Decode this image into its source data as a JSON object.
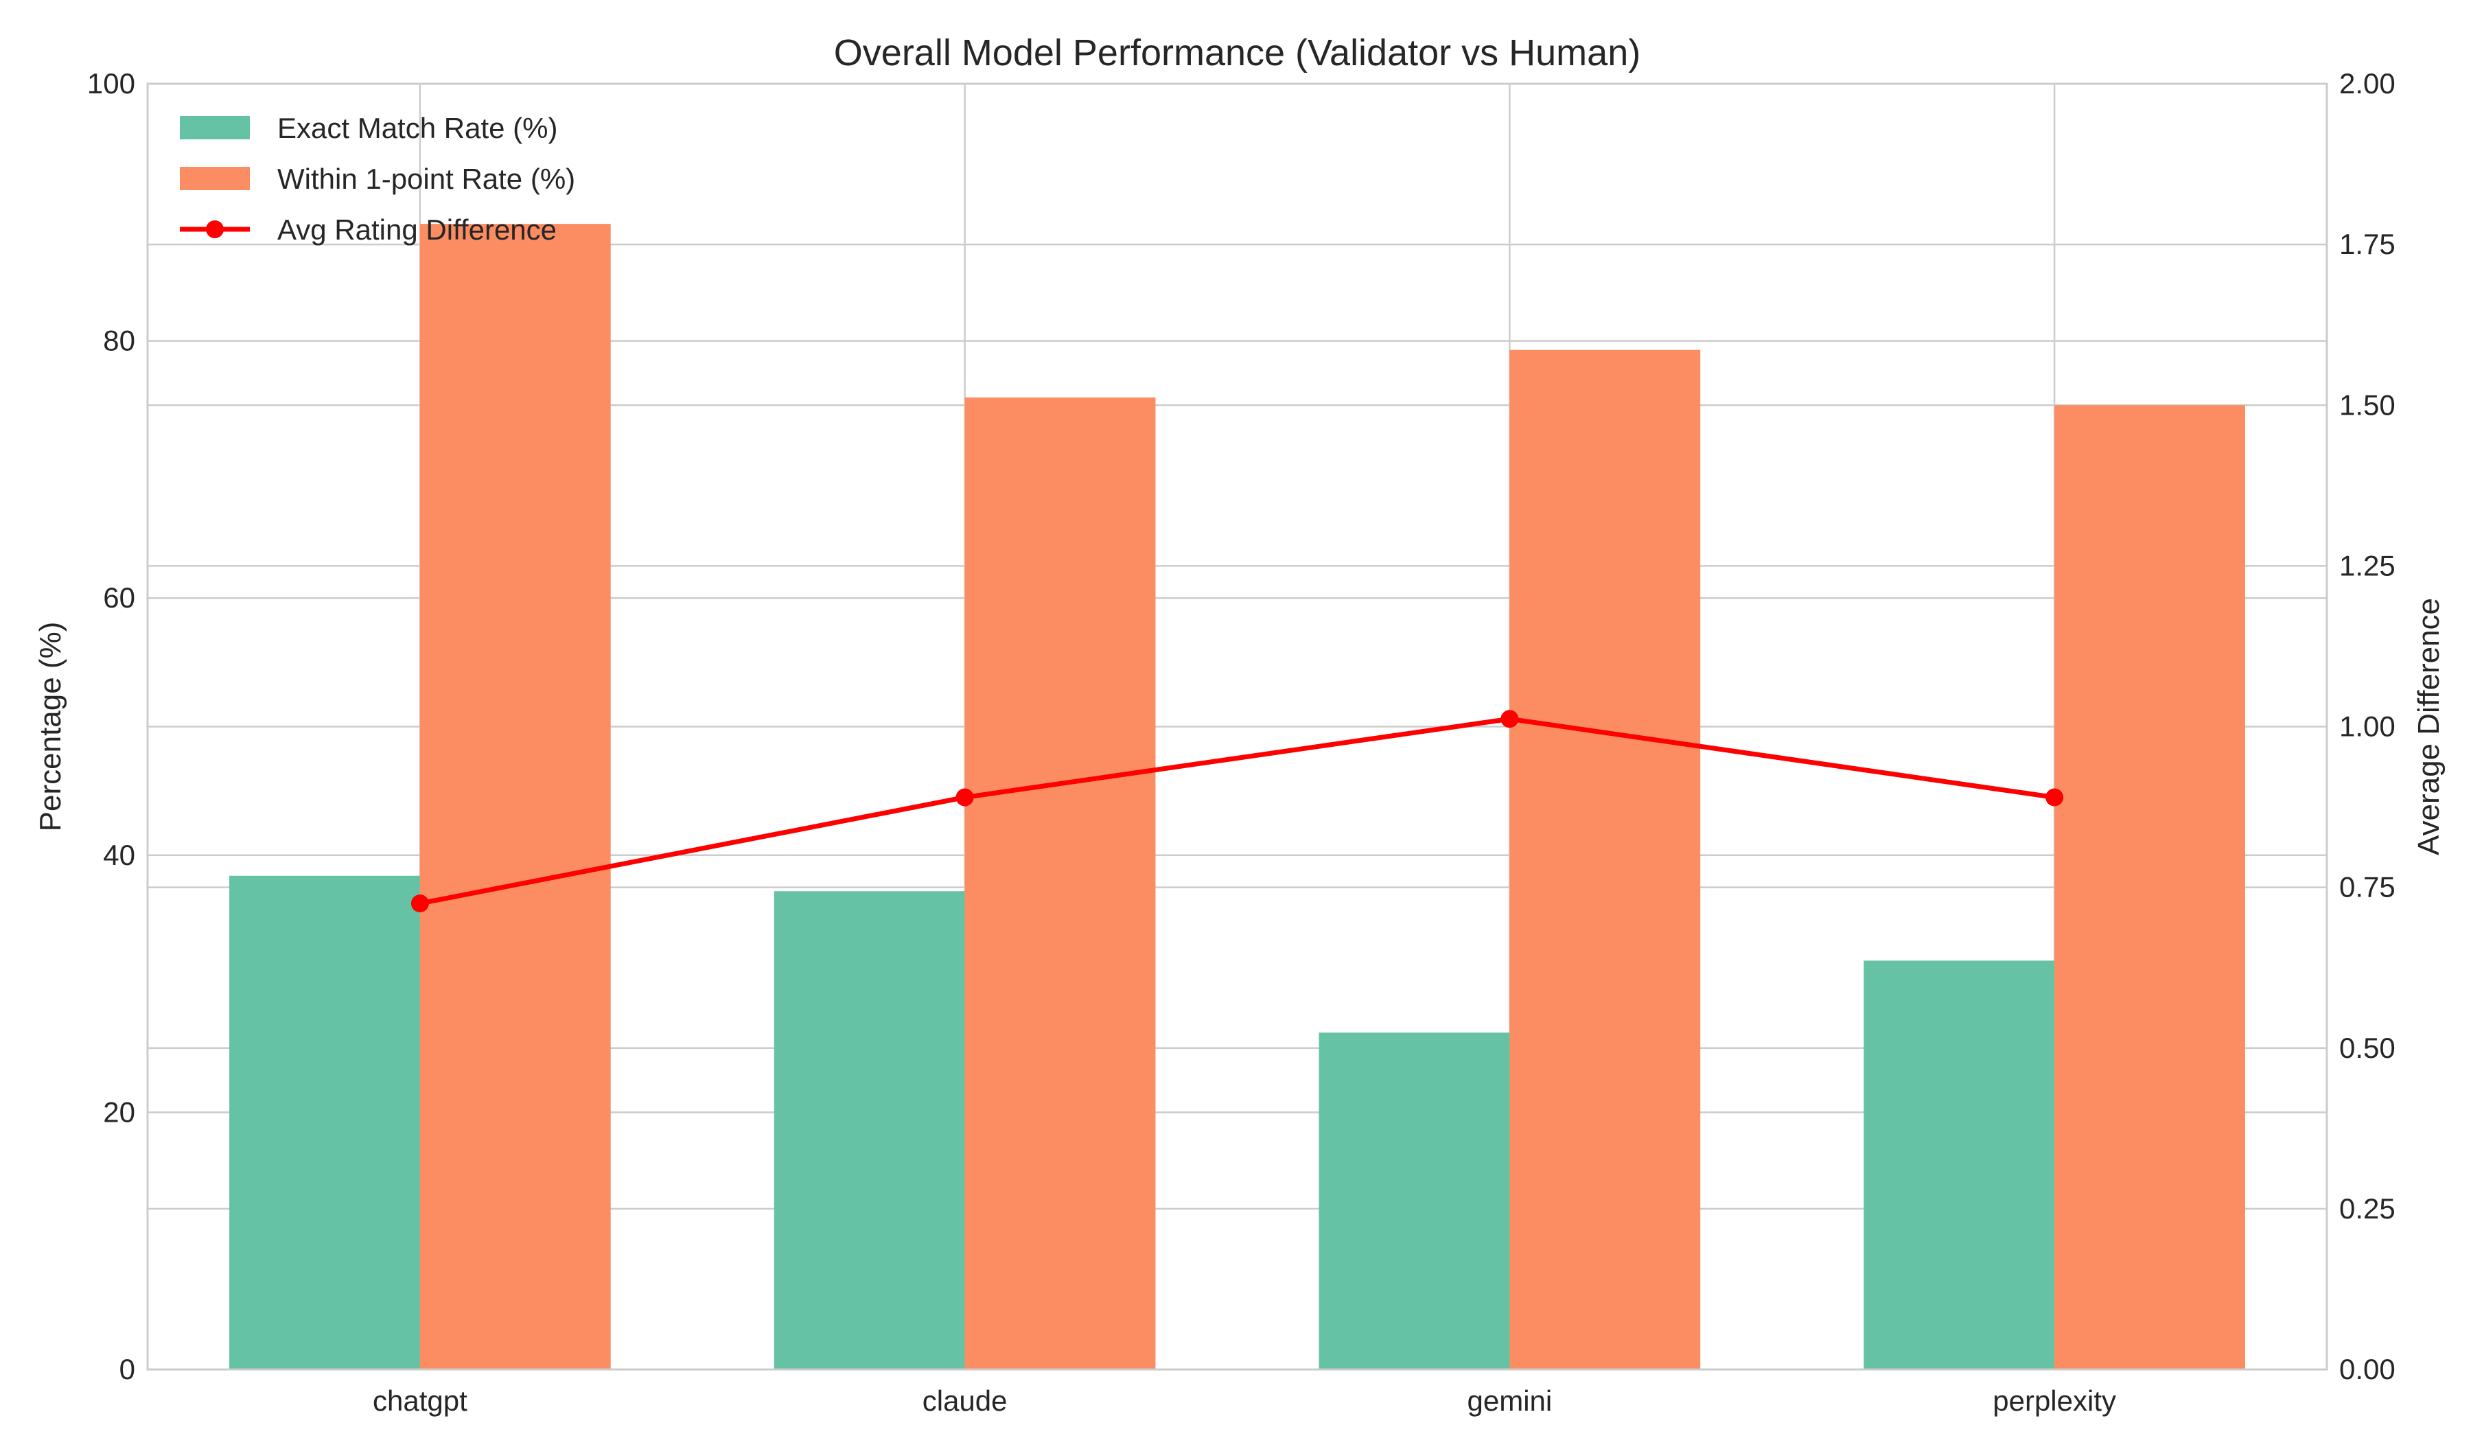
{
  "chart_data": {
    "type": "bar",
    "title": "Overall Model Performance (Validator vs Human)",
    "xlabel": "",
    "ylabel": "Percentage (%)",
    "ylabel_right": "Average Difference",
    "categories": [
      "chatgpt",
      "claude",
      "gemini",
      "perplexity"
    ],
    "ylim": [
      0,
      100
    ],
    "ylim_right": [
      0,
      2.0
    ],
    "yticks": [
      "0",
      "20",
      "40",
      "60",
      "80",
      "100"
    ],
    "yticks_right": [
      "0.00",
      "0.25",
      "0.50",
      "0.75",
      "1.00",
      "1.25",
      "1.50",
      "1.75",
      "2.00"
    ],
    "grid": true,
    "legend_position": "top-left",
    "series": [
      {
        "name": "Exact Match Rate (%)",
        "type": "bar",
        "axis": "left",
        "color": "#66c2a5",
        "values": [
          38.4,
          37.2,
          26.2,
          31.8
        ]
      },
      {
        "name": "Within 1-point Rate (%)",
        "type": "bar",
        "axis": "left",
        "color": "#fc8d62",
        "values": [
          89.1,
          75.6,
          79.3,
          75.0
        ]
      },
      {
        "name": "Avg Rating Difference",
        "type": "line",
        "axis": "right",
        "color": "#ff0000",
        "values": [
          0.725,
          0.89,
          1.012,
          0.89
        ]
      }
    ]
  }
}
